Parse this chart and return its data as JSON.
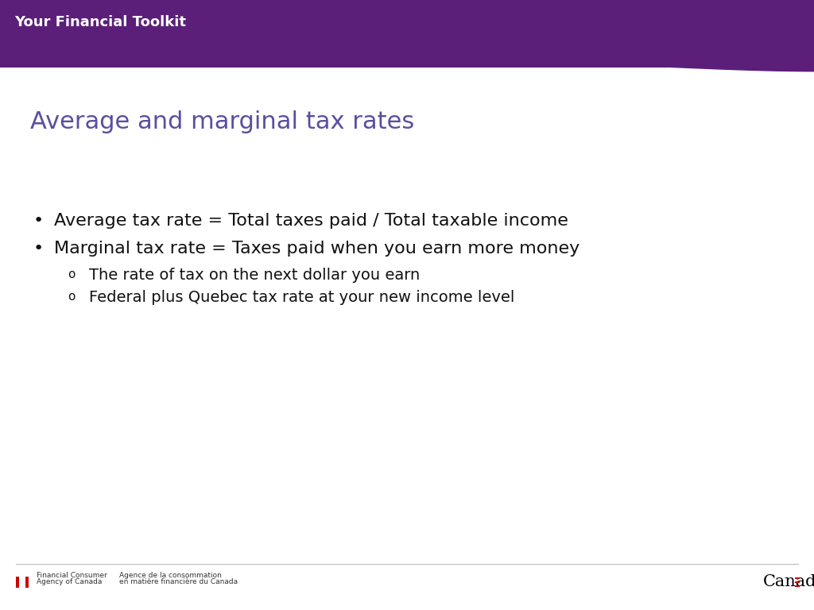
{
  "title": "Average and marginal tax rates",
  "title_color": "#5B4EA0",
  "title_fontsize": 22,
  "header_text": "Your Financial Toolkit",
  "header_bg_color": "#5B1F7A",
  "header_text_color": "#FFFFFF",
  "header_fontsize": 13,
  "bg_color": "#FFFFFF",
  "bullet_points": [
    "Average tax rate = Total taxes paid / Total taxable income",
    "Marginal tax rate = Taxes paid when you earn more money"
  ],
  "sub_bullets": [
    "The rate of tax on the next dollar you earn",
    "Federal plus Quebec tax rate at your new income level"
  ],
  "bullet_fontsize": 16,
  "sub_bullet_fontsize": 14,
  "wave_color": "#5B1F7A",
  "separator_color": "#BBBBBB"
}
